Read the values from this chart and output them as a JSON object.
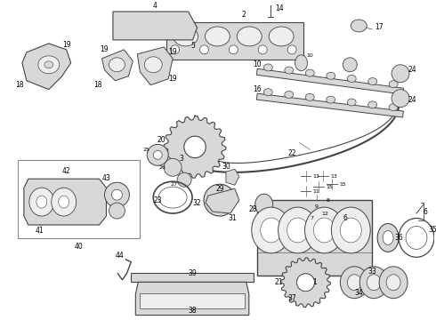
{
  "background_color": "#ffffff",
  "line_color": "#444444",
  "fig_width": 4.9,
  "fig_height": 3.6,
  "dpi": 100,
  "gray_fill": "#d8d8d8",
  "light_fill": "#eeeeee",
  "mid_fill": "#cccccc"
}
